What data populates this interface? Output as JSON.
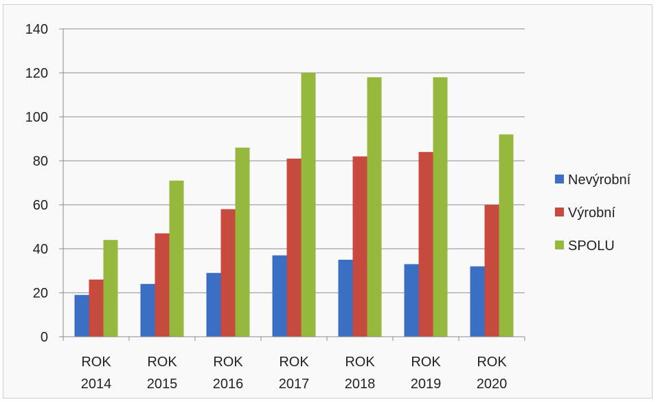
{
  "chart_data": {
    "type": "bar",
    "categories": [
      [
        "ROK",
        "2014"
      ],
      [
        "ROK",
        "2015"
      ],
      [
        "ROK",
        "2016"
      ],
      [
        "ROK",
        "2017"
      ],
      [
        "ROK",
        "2018"
      ],
      [
        "ROK",
        "2019"
      ],
      [
        "ROK",
        "2020"
      ]
    ],
    "series": [
      {
        "name": "Nevýrobní",
        "color": "#3A6FC4",
        "values": [
          19,
          24,
          29,
          37,
          35,
          33,
          32
        ]
      },
      {
        "name": "Výrobní",
        "color": "#C64A3D",
        "values": [
          26,
          47,
          58,
          81,
          82,
          84,
          60
        ]
      },
      {
        "name": "SPOLU",
        "color": "#95B93C",
        "values": [
          44,
          71,
          86,
          120,
          118,
          118,
          92
        ]
      }
    ],
    "ylim": [
      0,
      140
    ],
    "yticks": [
      0,
      20,
      40,
      60,
      80,
      100,
      120,
      140
    ],
    "grid": true,
    "legend_position": "right"
  }
}
